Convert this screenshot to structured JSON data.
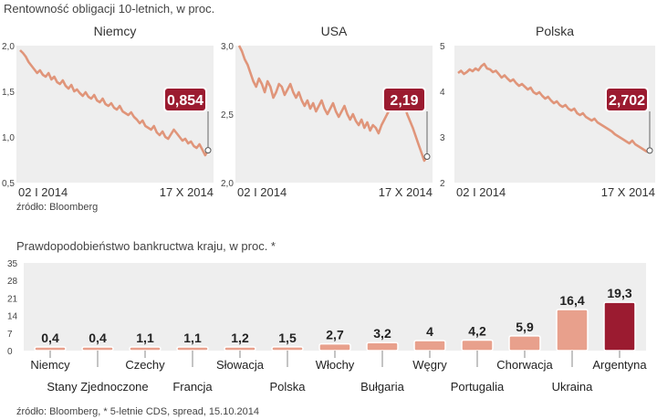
{
  "yields": {
    "title": "Rentowność obligacji 10-letnich, w proc.",
    "source": "źródło: Bloomberg",
    "colors": {
      "line": "#e0957a",
      "label_bg": "#9b1b30",
      "panel_bg": "#eeeeee"
    }
  },
  "default_risk": {
    "title": "Prawdopodobieństwo bankructwa kraju, w proc. *",
    "source": "źródło: Bloomberg, * 5-letnie CDS, spread, 15.10.2014",
    "colors": {
      "bar_light": "#e8a08c",
      "bar_highlight": "#9b1b30",
      "panel_bg": "#eeeeee"
    }
  },
  "chart_data": [
    {
      "type": "line",
      "title": "Niemcy",
      "x_labels": [
        "02 I 2014",
        "17 X 2014"
      ],
      "y_ticks": [
        "2,0",
        "1,5",
        "1,0",
        "0,5"
      ],
      "ylim": [
        0.5,
        2.0
      ],
      "last_value_label": "0,854",
      "last_value": 0.854,
      "values": [
        1.95,
        1.92,
        1.88,
        1.82,
        1.78,
        1.74,
        1.7,
        1.73,
        1.68,
        1.66,
        1.7,
        1.63,
        1.66,
        1.6,
        1.58,
        1.62,
        1.56,
        1.53,
        1.57,
        1.5,
        1.52,
        1.48,
        1.45,
        1.49,
        1.44,
        1.42,
        1.46,
        1.4,
        1.38,
        1.42,
        1.36,
        1.34,
        1.37,
        1.32,
        1.3,
        1.34,
        1.28,
        1.26,
        1.24,
        1.27,
        1.22,
        1.19,
        1.15,
        1.18,
        1.12,
        1.1,
        1.08,
        1.12,
        1.05,
        1.02,
        1.06,
        1.0,
        0.98,
        1.03,
        1.08,
        1.04,
        1.0,
        0.96,
        0.98,
        0.93,
        0.95,
        0.9,
        0.88,
        0.92,
        0.86,
        0.8,
        0.854
      ]
    },
    {
      "type": "line",
      "title": "USA",
      "x_labels": [
        "02 I 2014",
        "17 X 2014"
      ],
      "y_ticks": [
        "3,0",
        "2,5",
        "2,0"
      ],
      "ylim": [
        2.0,
        3.0
      ],
      "last_value_label": "2,19",
      "last_value": 2.19,
      "values": [
        3.0,
        2.96,
        2.9,
        2.86,
        2.8,
        2.74,
        2.7,
        2.76,
        2.72,
        2.66,
        2.74,
        2.7,
        2.62,
        2.66,
        2.72,
        2.7,
        2.64,
        2.68,
        2.72,
        2.66,
        2.62,
        2.66,
        2.6,
        2.56,
        2.6,
        2.54,
        2.58,
        2.52,
        2.56,
        2.6,
        2.54,
        2.5,
        2.54,
        2.58,
        2.52,
        2.48,
        2.52,
        2.56,
        2.5,
        2.46,
        2.5,
        2.45,
        2.42,
        2.46,
        2.4,
        2.44,
        2.38,
        2.42,
        2.4,
        2.36,
        2.42,
        2.46,
        2.5,
        2.54,
        2.58,
        2.6,
        2.56,
        2.62,
        2.58,
        2.5,
        2.45,
        2.4,
        2.34,
        2.28,
        2.22,
        2.16,
        2.19
      ]
    },
    {
      "type": "line",
      "title": "Polska",
      "x_labels": [
        "02 I 2014",
        "17 X 2014"
      ],
      "y_ticks": [
        "5",
        "4",
        "3",
        "2"
      ],
      "ylim": [
        2,
        5
      ],
      "last_value_label": "2,702",
      "last_value": 2.702,
      "values": [
        4.4,
        4.45,
        4.38,
        4.42,
        4.48,
        4.44,
        4.5,
        4.46,
        4.55,
        4.6,
        4.5,
        4.48,
        4.42,
        4.45,
        4.38,
        4.3,
        4.35,
        4.28,
        4.22,
        4.26,
        4.18,
        4.12,
        4.16,
        4.1,
        4.04,
        4.08,
        3.98,
        3.94,
        3.98,
        3.9,
        3.84,
        3.88,
        3.8,
        3.74,
        3.78,
        3.7,
        3.66,
        3.7,
        3.62,
        3.58,
        3.62,
        3.52,
        3.48,
        3.52,
        3.44,
        3.4,
        3.36,
        3.4,
        3.32,
        3.28,
        3.24,
        3.2,
        3.16,
        3.12,
        3.06,
        3.02,
        2.98,
        2.94,
        2.9,
        2.86,
        2.92,
        2.84,
        2.8,
        2.76,
        2.72,
        2.68,
        2.702
      ]
    },
    {
      "type": "bar",
      "title": "Prawdopodobieństwo bankructwa kraju, w proc. *",
      "categories": [
        "Niemcy",
        "Stany Zjednoczone",
        "Czechy",
        "Francja",
        "Słowacja",
        "Polska",
        "Włochy",
        "Bułgaria",
        "Węgry",
        "Portugalia",
        "Chorwacja",
        "Ukraina",
        "Argentyna"
      ],
      "values": [
        0.4,
        0.4,
        1.1,
        1.1,
        1.2,
        1.5,
        2.7,
        3.2,
        4,
        4.2,
        5.9,
        16.4,
        19.3
      ],
      "value_labels": [
        "0,4",
        "0,4",
        "1,1",
        "1,1",
        "1,2",
        "1,5",
        "2,7",
        "3,2",
        "4",
        "4,2",
        "5,9",
        "16,4",
        "19,3"
      ],
      "y_ticks": [
        "35",
        "28",
        "21",
        "14",
        "7",
        "0"
      ],
      "ylim": [
        0,
        35
      ],
      "highlight": "Argentyna"
    }
  ]
}
